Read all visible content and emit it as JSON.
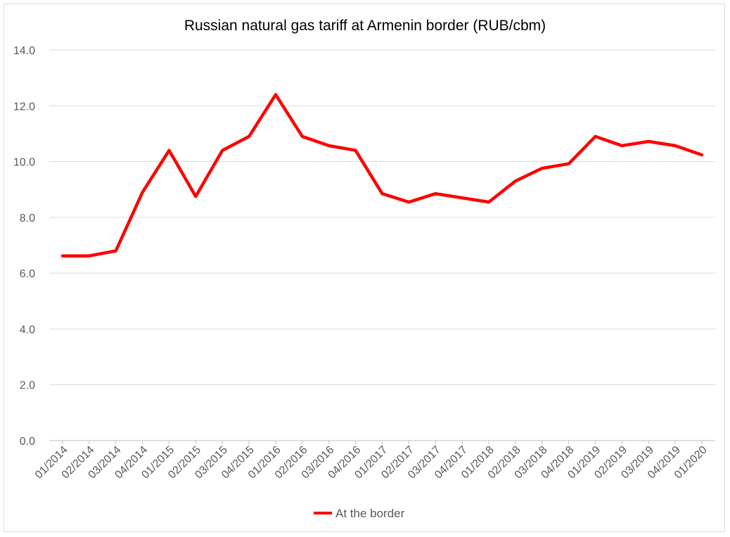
{
  "chart_data": {
    "type": "line",
    "title": "Russian natural gas tariff at Armenin border (RUB/cbm)",
    "xlabel": "",
    "ylabel": "",
    "ylim": [
      0,
      14
    ],
    "yticks": [
      "0.0",
      "2.0",
      "4.0",
      "6.0",
      "8.0",
      "10.0",
      "12.0",
      "14.0"
    ],
    "grid": true,
    "legend_position": "bottom",
    "categories": [
      "01/2014",
      "02/2014",
      "03/2014",
      "04/2014",
      "01/2015",
      "02/2015",
      "03/2015",
      "04/2015",
      "01/2016",
      "02/2016",
      "03/2016",
      "04/2016",
      "01/2017",
      "02/2017",
      "03/2017",
      "04/2017",
      "01/2018",
      "02/2018",
      "03/2018",
      "04/2018",
      "01/2019",
      "02/2019",
      "03/2019",
      "04/2019",
      "01/2020"
    ],
    "series": [
      {
        "name": "At the border",
        "color": "#ff0000",
        "values": [
          6.62,
          6.62,
          6.8,
          8.9,
          10.4,
          8.75,
          10.4,
          10.9,
          12.4,
          10.9,
          10.57,
          10.4,
          8.85,
          8.55,
          8.85,
          8.7,
          8.55,
          9.3,
          9.76,
          9.92,
          10.9,
          10.57,
          10.72,
          10.57,
          10.24
        ]
      }
    ]
  }
}
